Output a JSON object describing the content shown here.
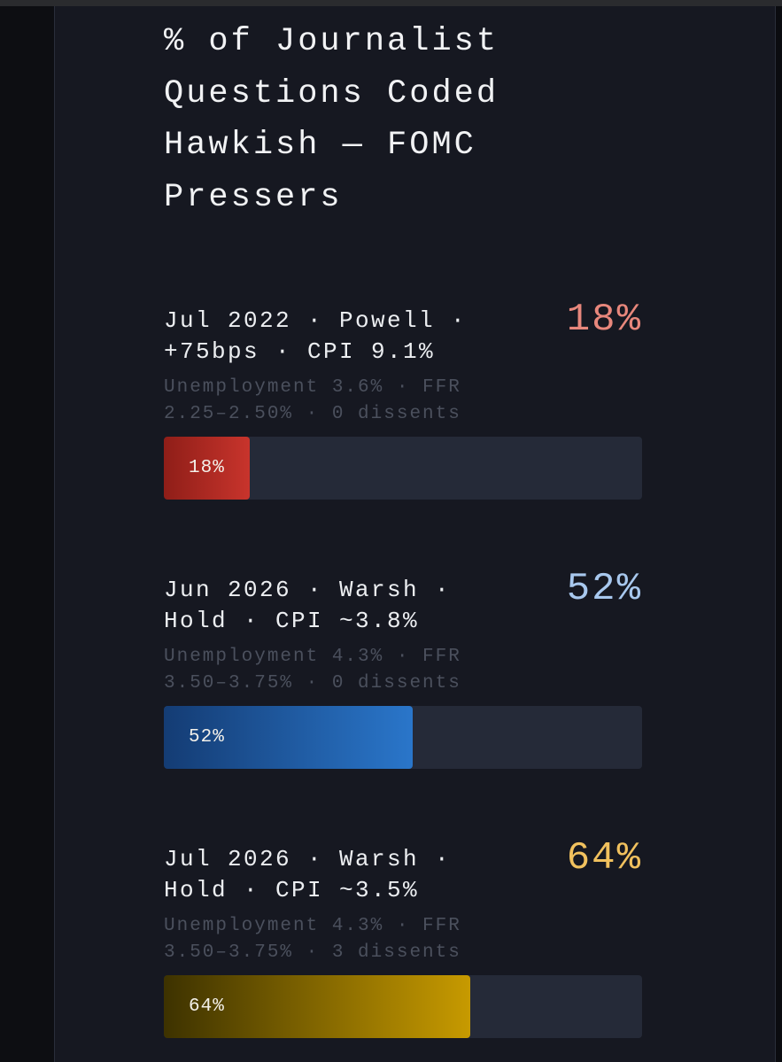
{
  "chart_data": {
    "type": "bar",
    "orientation": "horizontal",
    "title": "% of Journalist Questions Coded Hawkish — FOMC Pressers",
    "xlim": [
      0,
      100
    ],
    "unit": "%",
    "entries": [
      {
        "heading": "Jul 2022 · Powell · +75bps · CPI 9.1%",
        "detail": "Unemployment 3.6% · FFR 2.25–2.50% · 0 dissents",
        "value": 18,
        "value_label": "18%",
        "accent": "#e8877c",
        "bar_color_start": "#8f1e18",
        "bar_color_end": "#c8342c"
      },
      {
        "heading": "Jun 2026 · Warsh · Hold · CPI ~3.8%",
        "detail": "Unemployment 4.3% · FFR 3.50–3.75% · 0 dissents",
        "value": 52,
        "value_label": "52%",
        "accent": "#a8c8ee",
        "bar_color_start": "#143c74",
        "bar_color_end": "#2a76ca"
      },
      {
        "heading": "Jul 2026 · Warsh · Hold · CPI ~3.5%",
        "detail": "Unemployment 4.3% · FFR 3.50–3.75% · 3 dissents",
        "value": 64,
        "value_label": "64%",
        "accent": "#f1c15e",
        "bar_color_start": "#3d3200",
        "bar_color_end": "#c79a00"
      }
    ]
  }
}
